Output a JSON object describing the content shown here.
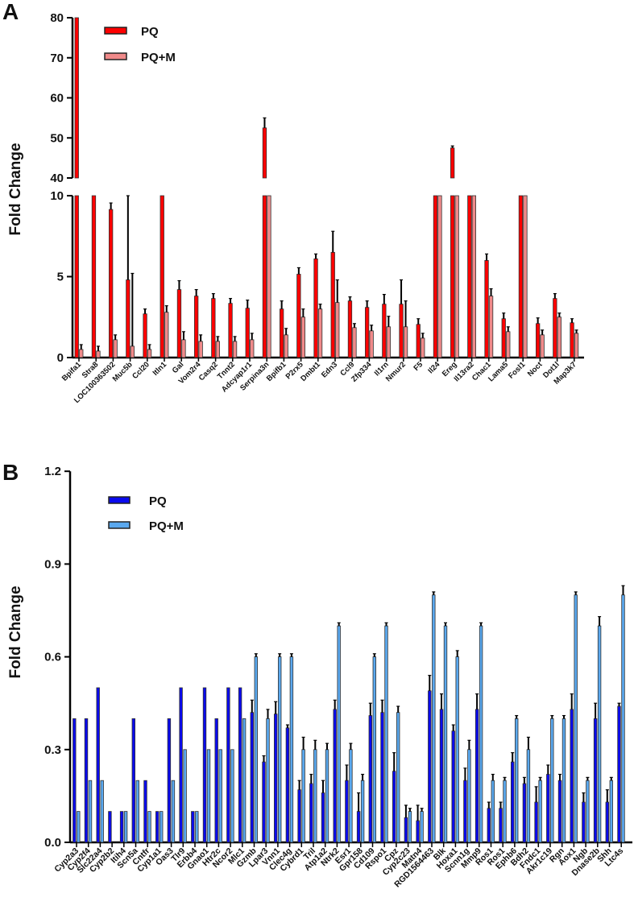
{
  "chart_data": [
    {
      "panel": "A",
      "type": "bar",
      "ylabel": "Fold Change",
      "y_axis": {
        "broken": true,
        "lower_range": [
          0,
          10
        ],
        "lower_ticks": [
          "0",
          "5",
          "10"
        ],
        "upper_range": [
          40,
          80
        ],
        "upper_ticks": [
          "40",
          "50",
          "60",
          "70",
          "80"
        ]
      },
      "legend": {
        "position": "top-left",
        "entries": [
          "PQ",
          "PQ+M"
        ]
      },
      "colors": {
        "PQ": "#ff0000",
        "PQ+M": "#f08a8a"
      },
      "categories": [
        "Bpifa1",
        "Stra8",
        "LOC100363502",
        "Muc5b",
        "Ccl20",
        "Itln1",
        "Gal",
        "Vom2r4",
        "Casq2",
        "Tnnt2",
        "Adcyap1r1",
        "Serpina3n",
        "Bpifb1",
        "P2rx5",
        "Dmbt1",
        "Edn3",
        "Ccl9",
        "Zfp334",
        "Il1rn",
        "Nmur2",
        "F5",
        "Il24",
        "Ereg",
        "Il13ra2",
        "Chac1",
        "Lama5",
        "Fosl1",
        "Noct",
        "Dot1l",
        "Map3k7"
      ],
      "series": [
        {
          "name": "PQ",
          "values": [
            85,
            20,
            9.15,
            4.8,
            2.7,
            20,
            4.2,
            3.8,
            3.65,
            3.35,
            3.05,
            52.5,
            3.0,
            5.15,
            6.1,
            6.5,
            3.5,
            3.1,
            3.3,
            3.3,
            2.05,
            20,
            47.5,
            20,
            6.0,
            2.4,
            20,
            2.1,
            3.65,
            2.15
          ],
          "errors": [
            0,
            0,
            0.4,
            5.2,
            0.3,
            0,
            0.55,
            0.4,
            0.3,
            0.3,
            0.5,
            2.5,
            0.5,
            0.4,
            0.3,
            1.3,
            0.25,
            0.4,
            0.6,
            1.5,
            0.35,
            0,
            0.5,
            0,
            0.4,
            0.35,
            0,
            0.35,
            0.3,
            0.25
          ]
        },
        {
          "name": "PQ+M",
          "values": [
            0.5,
            0.4,
            1.1,
            0.7,
            0.5,
            2.8,
            1.1,
            1.0,
            1.0,
            1.0,
            1.1,
            20,
            1.4,
            2.5,
            3.0,
            3.4,
            1.85,
            1.65,
            1.9,
            1.9,
            1.2,
            20,
            20,
            20,
            3.8,
            1.6,
            20,
            1.4,
            2.5,
            1.5
          ],
          "errors": [
            0.3,
            0.3,
            0.3,
            4.5,
            0.3,
            0.4,
            0.5,
            0.4,
            0.3,
            0.3,
            0.4,
            0,
            0.4,
            0.5,
            0.3,
            1.4,
            0.25,
            0.35,
            0.65,
            1.6,
            0.3,
            0,
            0,
            0,
            0.45,
            0.3,
            0,
            0.3,
            0.25,
            0.2
          ]
        }
      ]
    },
    {
      "panel": "B",
      "type": "bar",
      "ylabel": "Fold Change",
      "ylim": [
        0,
        1.2
      ],
      "yticks": [
        "0.0",
        "0.3",
        "0.6",
        "0.9",
        "1.2"
      ],
      "legend": {
        "position": "top-left",
        "entries": [
          "PQ",
          "PQ+M"
        ]
      },
      "colors": {
        "PQ": "#0a0aee",
        "PQ+M": "#5aa8ee"
      },
      "categories": [
        "Cyp2a3",
        "Cyp2f4",
        "Slc22a4",
        "Cyp2b2",
        "Itih4",
        "Scn5a",
        "Cntfr",
        "Cyp1a1",
        "Oas3",
        "Tlr9",
        "Erbb4",
        "Gnao1",
        "Htr2c",
        "Ncor2",
        "Mlc1",
        "Gzmb",
        "Lpar3",
        "Vnn1",
        "Clec4g",
        "Cybrd1",
        "Tril",
        "Atp1a2",
        "Ntrk2",
        "Esr1",
        "Gpr158",
        "Cd109",
        "Rspo1",
        "Cpz",
        "Cyp2c23",
        "Matn4",
        "RGD1564463",
        "Blk",
        "Hoxa1",
        "Scnn1g",
        "Mmp9",
        "Ros1",
        "Ros1",
        "Ephb6",
        "Bdh2",
        "Fndc1",
        "Akr1c19",
        "Rgn",
        "Aox1",
        "Ngb",
        "Dnase2b",
        "Shh",
        "Ltc4s"
      ],
      "series": [
        {
          "name": "PQ",
          "values": [
            0.4,
            0.4,
            0.5,
            0.1,
            0.1,
            0.4,
            0.2,
            0.1,
            0.4,
            0.5,
            0.1,
            0.5,
            0.4,
            0.5,
            0.5,
            0.42,
            0.26,
            0.415,
            0.37,
            0.17,
            0.19,
            0.16,
            0.43,
            0.2,
            0.1,
            0.41,
            0.42,
            0.23,
            0.08,
            0.07,
            0.49,
            0.43,
            0.36,
            0.2,
            0.43,
            0.11,
            0.11,
            0.26,
            0.19,
            0.13,
            0.22,
            0.2,
            0.43,
            0.13,
            0.4,
            0.13,
            0.44
          ],
          "errors": [
            0,
            0,
            0,
            0,
            0,
            0,
            0,
            0,
            0,
            0,
            0,
            0,
            0,
            0,
            0,
            0.04,
            0.02,
            0.04,
            0.01,
            0.03,
            0.03,
            0.04,
            0.03,
            0.05,
            0.06,
            0.04,
            0.04,
            0.06,
            0.04,
            0.05,
            0.05,
            0.05,
            0.02,
            0.04,
            0.05,
            0.02,
            0.02,
            0.03,
            0.02,
            0.05,
            0.03,
            0.02,
            0.05,
            0.03,
            0.05,
            0.04,
            0.01
          ]
        },
        {
          "name": "PQ+M",
          "values": [
            0.1,
            0.2,
            0.2,
            0,
            0.1,
            0.2,
            0.1,
            0.1,
            0.2,
            0.3,
            0.1,
            0.3,
            0.3,
            0.3,
            0.4,
            0.6,
            0.4,
            0.6,
            0.6,
            0.3,
            0.3,
            0.3,
            0.7,
            0.3,
            0.2,
            0.6,
            0.7,
            0.42,
            0.1,
            0.1,
            0.8,
            0.7,
            0.6,
            0.3,
            0.7,
            0.2,
            0.2,
            0.4,
            0.3,
            0.2,
            0.4,
            0.4,
            0.8,
            0.2,
            0.7,
            0.2,
            0.8
          ],
          "errors": [
            0,
            0,
            0,
            0,
            0,
            0,
            0,
            0,
            0,
            0,
            0,
            0,
            0,
            0,
            0,
            0.01,
            0.03,
            0.01,
            0.01,
            0.04,
            0.03,
            0.02,
            0.01,
            0.02,
            0.02,
            0.01,
            0.01,
            0.02,
            0.01,
            0.01,
            0.01,
            0.01,
            0.02,
            0.03,
            0.01,
            0.02,
            0.01,
            0.01,
            0.04,
            0.01,
            0.01,
            0.01,
            0.01,
            0.01,
            0.03,
            0.01,
            0.03
          ]
        }
      ]
    }
  ],
  "panels": {
    "A": "A",
    "B": "B"
  }
}
